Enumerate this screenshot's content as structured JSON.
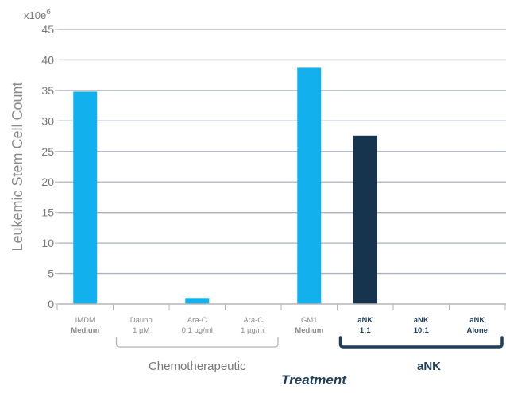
{
  "chart_data": {
    "type": "bar",
    "title": "",
    "ylabel": "Leukemic Stem Cell Count",
    "y_multiplier_label": "x10e",
    "y_multiplier_exponent": "6",
    "xlabel": "Treatment",
    "ylim": [
      0,
      45
    ],
    "yticks": [
      "0",
      "5",
      "10",
      "15",
      "20",
      "25",
      "30",
      "35",
      "40",
      "45"
    ],
    "grid": true,
    "categories": [
      {
        "line1": "IMDM",
        "line2": "Medium",
        "value": 34.8,
        "style": "light"
      },
      {
        "line1": "Dauno",
        "line2": "1 µM",
        "value": 0,
        "style": "light"
      },
      {
        "line1": "Ara-C",
        "line2": "0.1 µg/ml",
        "value": 1.0,
        "style": "light"
      },
      {
        "line1": "Ara-C",
        "line2": "1 µg/ml",
        "value": 0,
        "style": "light"
      },
      {
        "line1": "GM1",
        "line2": "Medium",
        "value": 38.7,
        "style": "light"
      },
      {
        "line1": "aNK",
        "line2": "1:1",
        "value": 27.6,
        "style": "dark"
      },
      {
        "line1": "aNK",
        "line2": "10:1",
        "value": 0,
        "style": "dark"
      },
      {
        "line1": "aNK",
        "line2": "Alone",
        "value": 0,
        "style": "dark"
      }
    ],
    "groups": [
      {
        "label": "Chemotherapeutic",
        "from": 1,
        "to": 3,
        "style": "light"
      },
      {
        "label": "aNK",
        "from": 5,
        "to": 7,
        "style": "dark"
      }
    ],
    "colors": {
      "light_bar": "#12b0ec",
      "dark_bar": "#17344f",
      "grid": "#a9b3bd",
      "axis": "#b5b5b5",
      "light_bracket": "#b5b5b5",
      "dark_bracket": "#1f3f5c"
    }
  }
}
